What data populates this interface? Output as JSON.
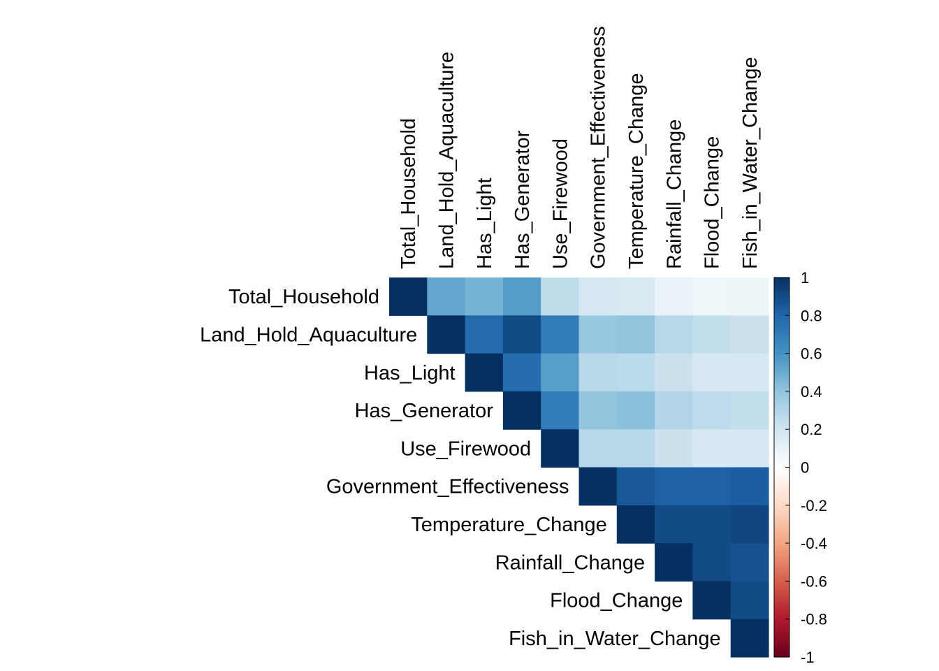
{
  "chart_data": {
    "type": "heatmap",
    "variant": "upper-triangle correlation matrix",
    "title": "",
    "variables": [
      "Total_Household",
      "Land_Hold_Aquaculture",
      "Has_Light",
      "Has_Generator",
      "Use_Firewood",
      "Government_Effectiveness",
      "Temperature_Change",
      "Rainfall_Change",
      "Flood_Change",
      "Fish_in_Water_Change"
    ],
    "matrix": [
      [
        1.0,
        0.52,
        0.47,
        0.56,
        0.25,
        0.18,
        0.17,
        0.1,
        0.07,
        0.08
      ],
      [
        null,
        1.0,
        0.78,
        0.9,
        0.7,
        0.38,
        0.4,
        0.28,
        0.24,
        0.22
      ],
      [
        null,
        null,
        1.0,
        0.77,
        0.55,
        0.28,
        0.27,
        0.22,
        0.18,
        0.18
      ],
      [
        null,
        null,
        null,
        1.0,
        0.7,
        0.4,
        0.42,
        0.3,
        0.26,
        0.24
      ],
      [
        null,
        null,
        null,
        null,
        1.0,
        0.28,
        0.28,
        0.22,
        0.18,
        0.18
      ],
      [
        null,
        null,
        null,
        null,
        null,
        1.0,
        0.85,
        0.82,
        0.82,
        0.83
      ],
      [
        null,
        null,
        null,
        null,
        null,
        null,
        1.0,
        0.9,
        0.9,
        0.92
      ],
      [
        null,
        null,
        null,
        null,
        null,
        null,
        null,
        1.0,
        0.9,
        0.88
      ],
      [
        null,
        null,
        null,
        null,
        null,
        null,
        null,
        null,
        1.0,
        0.9
      ],
      [
        null,
        null,
        null,
        null,
        null,
        null,
        null,
        null,
        null,
        1.0
      ]
    ],
    "colorbar": {
      "range": [
        -1,
        1
      ],
      "ticks": [
        "1",
        "0.8",
        "0.6",
        "0.4",
        "0.2",
        "0",
        "-0.2",
        "-0.4",
        "-0.6",
        "-0.8",
        "-1"
      ],
      "tick_values": [
        1,
        0.8,
        0.6,
        0.4,
        0.2,
        0,
        -0.2,
        -0.4,
        -0.6,
        -0.8,
        -1
      ],
      "palette": [
        "#67001F",
        "#B2182B",
        "#D6604D",
        "#F4A582",
        "#FDDBC7",
        "#FFFFFF",
        "#D1E5F0",
        "#92C5DE",
        "#4393C3",
        "#2166AC",
        "#053061"
      ],
      "placement": "right"
    }
  }
}
